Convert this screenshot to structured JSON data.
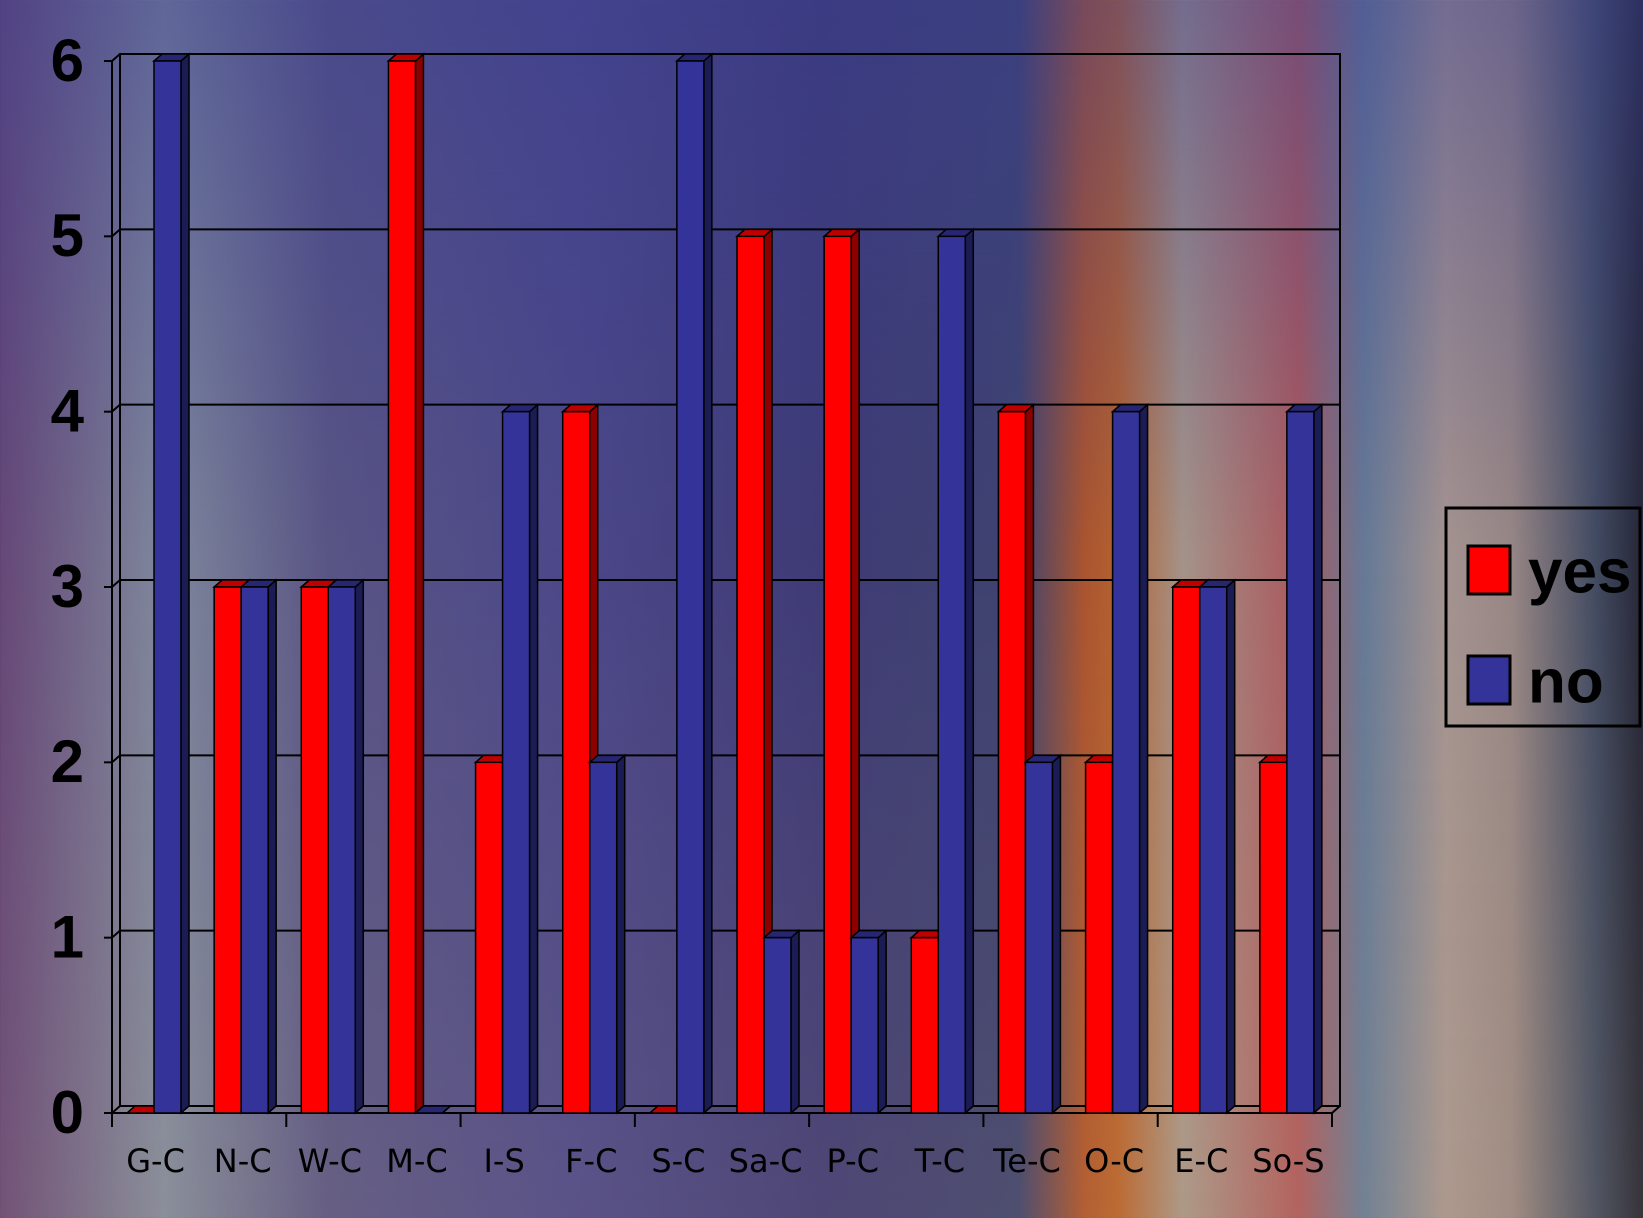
{
  "chart_data": {
    "type": "bar3d",
    "categories": [
      "G-C",
      "N-C",
      "W-C",
      "M-C",
      "I-S",
      "F-C",
      "S-C",
      "Sa-C",
      "P-C",
      "T-C",
      "Te-C",
      "O-C",
      "E-C",
      "So-S"
    ],
    "series": [
      {
        "name": "yes",
        "color": "#ff0000",
        "values": [
          0,
          3,
          3,
          6,
          2,
          4,
          0,
          5,
          5,
          1,
          4,
          2,
          3,
          2
        ]
      },
      {
        "name": "no",
        "color": "#333399",
        "values": [
          6,
          3,
          3,
          0,
          4,
          2,
          6,
          1,
          1,
          5,
          2,
          4,
          3,
          4
        ]
      }
    ],
    "ylim": [
      0,
      6
    ],
    "yticks": [
      0,
      1,
      2,
      3,
      4,
      5,
      6
    ],
    "grid": true,
    "legend": "right"
  }
}
